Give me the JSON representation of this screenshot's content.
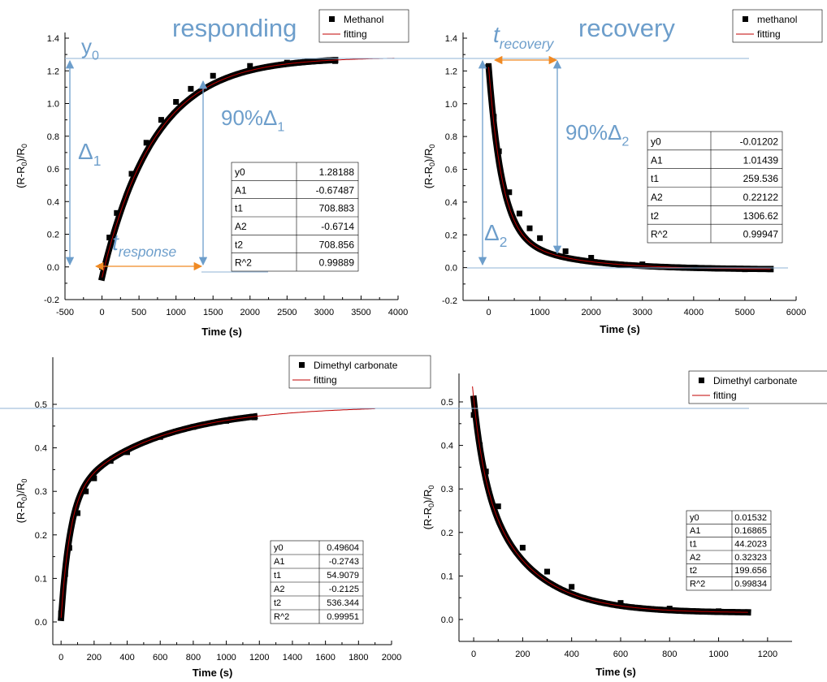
{
  "charts": [
    {
      "xlabel": "Time (s)",
      "ylabel": "(R-R0)/R0",
      "yticks": [
        "-0.2",
        "0.0",
        "0.2",
        "0.4",
        "0.6",
        "0.8",
        "1.0",
        "1.2",
        "1.4"
      ],
      "xticks": [
        "-500",
        "0",
        "500",
        "1000",
        "1500",
        "2000",
        "2500",
        "3000",
        "3500",
        "4000"
      ],
      "legend": [
        "Methanol",
        "fitting"
      ],
      "table": [
        [
          "y0",
          "1.28188"
        ],
        [
          "A1",
          "-0.67487"
        ],
        [
          "t1",
          "708.883"
        ],
        [
          "A2",
          "-0.6714"
        ],
        [
          "t2",
          "708.856"
        ],
        [
          "R^2",
          "0.99889"
        ]
      ],
      "annotations": {
        "title": "responding",
        "y0": "y",
        "y0_sub": "0",
        "delta": "Δ",
        "delta_sub": "1",
        "pct": "90%Δ",
        "pct_sub": "1",
        "t": "t",
        "t_sub": "response"
      }
    },
    {
      "xlabel": "Time (s)",
      "ylabel": "(R-R0)/R0",
      "yticks": [
        "-0.2",
        "0.0",
        "0.2",
        "0.4",
        "0.6",
        "0.8",
        "1.0",
        "1.2",
        "1.4"
      ],
      "xticks": [
        "0",
        "1000",
        "2000",
        "3000",
        "4000",
        "5000",
        "6000"
      ],
      "legend": [
        "methanol",
        "fitting"
      ],
      "table": [
        [
          "y0",
          "-0.01202"
        ],
        [
          "A1",
          "1.01439"
        ],
        [
          "t1",
          "259.536"
        ],
        [
          "A2",
          "0.22122"
        ],
        [
          "t2",
          "1306.62"
        ],
        [
          "R^2",
          "0.99947"
        ]
      ],
      "annotations": {
        "title": "recovery",
        "delta": "Δ",
        "delta_sub": "2",
        "pct": "90%Δ",
        "pct_sub": "2",
        "t": "t",
        "t_sub": "recovery"
      }
    },
    {
      "xlabel": "Time (s)",
      "ylabel": "(R-R0)/R0",
      "yticks": [
        "0.0",
        "0.1",
        "0.2",
        "0.3",
        "0.4",
        "0.5"
      ],
      "xticks": [
        "0",
        "200",
        "400",
        "600",
        "800",
        "1000",
        "1200",
        "1400",
        "1600",
        "1800",
        "2000"
      ],
      "legend": [
        "Dimethyl carbonate",
        "fitting"
      ],
      "table": [
        [
          "y0",
          "0.49604"
        ],
        [
          "A1",
          "-0.2743"
        ],
        [
          "t1",
          "54.9079"
        ],
        [
          "A2",
          "-0.2125"
        ],
        [
          "t2",
          "536.344"
        ],
        [
          "R^2",
          "0.99951"
        ]
      ]
    },
    {
      "xlabel": "Time (s)",
      "ylabel": "(R-R0)/R0",
      "yticks": [
        "0.0",
        "0.1",
        "0.2",
        "0.3",
        "0.4",
        "0.5"
      ],
      "xticks": [
        "0",
        "200",
        "400",
        "600",
        "800",
        "1000",
        "1200"
      ],
      "legend": [
        "Dimethyl carbonate",
        "fitting"
      ],
      "table": [
        [
          "y0",
          "0.01532"
        ],
        [
          "A1",
          "0.16865"
        ],
        [
          "t1",
          "44.2023"
        ],
        [
          "A2",
          "0.32323"
        ],
        [
          "t2",
          "199.656"
        ],
        [
          "R^2",
          "0.99834"
        ]
      ]
    }
  ],
  "chart_data": [
    {
      "type": "scatter",
      "series": [
        {
          "name": "Methanol",
          "x": [
            0,
            100,
            200,
            400,
            600,
            800,
            1000,
            1200,
            1500,
            2000,
            2500,
            3150
          ],
          "y": [
            0.0,
            0.18,
            0.33,
            0.57,
            0.76,
            0.9,
            1.01,
            1.09,
            1.17,
            1.23,
            1.25,
            1.26
          ]
        },
        {
          "name": "fitting",
          "model": "ExpDec2",
          "params": {
            "y0": 1.28188,
            "A1": -0.67487,
            "t1": 708.883,
            "A2": -0.6714,
            "t2": 708.856
          },
          "x_range": [
            0,
            3950
          ]
        }
      ],
      "xlim": [
        -500,
        4000
      ],
      "ylim": [
        -0.2,
        1.4
      ],
      "xlabel": "Time (s)",
      "ylabel": "(R-R0)/R0",
      "legend_position": "top-right"
    },
    {
      "type": "scatter",
      "series": [
        {
          "name": "methanol",
          "x": [
            0,
            100,
            200,
            400,
            600,
            800,
            1000,
            1500,
            2000,
            3000,
            4000,
            5000,
            5500
          ],
          "y": [
            1.23,
            0.92,
            0.71,
            0.46,
            0.33,
            0.24,
            0.18,
            0.1,
            0.06,
            0.02,
            0.0,
            -0.01,
            -0.01
          ]
        },
        {
          "name": "fitting",
          "model": "ExpDec2",
          "params": {
            "y0": -0.01202,
            "A1": 1.01439,
            "t1": 259.536,
            "A2": 0.22122,
            "t2": 1306.62
          },
          "x_range": [
            0,
            5500
          ]
        }
      ],
      "xlim": [
        -500,
        6000
      ],
      "ylim": [
        -0.2,
        1.4
      ],
      "xlabel": "Time (s)",
      "ylabel": "(R-R0)/R0",
      "legend_position": "top-right"
    },
    {
      "type": "scatter",
      "series": [
        {
          "name": "Dimethyl carbonate",
          "x": [
            0,
            25,
            50,
            100,
            150,
            200,
            300,
            400,
            600,
            800,
            1000,
            1170
          ],
          "y": [
            0.02,
            0.11,
            0.17,
            0.25,
            0.3,
            0.33,
            0.37,
            0.39,
            0.425,
            0.448,
            0.462,
            0.47
          ]
        },
        {
          "name": "fitting",
          "model": "ExpDec2",
          "params": {
            "y0": 0.49604,
            "A1": -0.2743,
            "t1": 54.9079,
            "A2": -0.2125,
            "t2": 536.344
          },
          "x_range": [
            0,
            1900
          ]
        }
      ],
      "xlim": [
        -50,
        2000
      ],
      "ylim": [
        -0.04,
        0.56
      ],
      "xlabel": "Time (s)",
      "ylabel": "(R-R0)/R0",
      "legend_position": "top-right"
    },
    {
      "type": "scatter",
      "series": [
        {
          "name": "Dimethyl carbonate",
          "x": [
            0,
            25,
            50,
            100,
            200,
            300,
            400,
            600,
            800,
            1000,
            1120
          ],
          "y": [
            0.47,
            0.4,
            0.34,
            0.26,
            0.165,
            0.11,
            0.075,
            0.038,
            0.025,
            0.019,
            0.017
          ]
        },
        {
          "name": "fitting",
          "model": "ExpDec2",
          "params": {
            "y0": 0.01532,
            "A1": 0.16865,
            "t1": 44.2023,
            "A2": 0.32323,
            "t2": 199.656
          },
          "x_range": [
            -5,
            1120
          ]
        }
      ],
      "xlim": [
        -60,
        1300
      ],
      "ylim": [
        -0.05,
        0.57
      ],
      "xlabel": "Time (s)",
      "ylabel": "(R-R0)/R0",
      "legend_position": "top-right"
    }
  ]
}
